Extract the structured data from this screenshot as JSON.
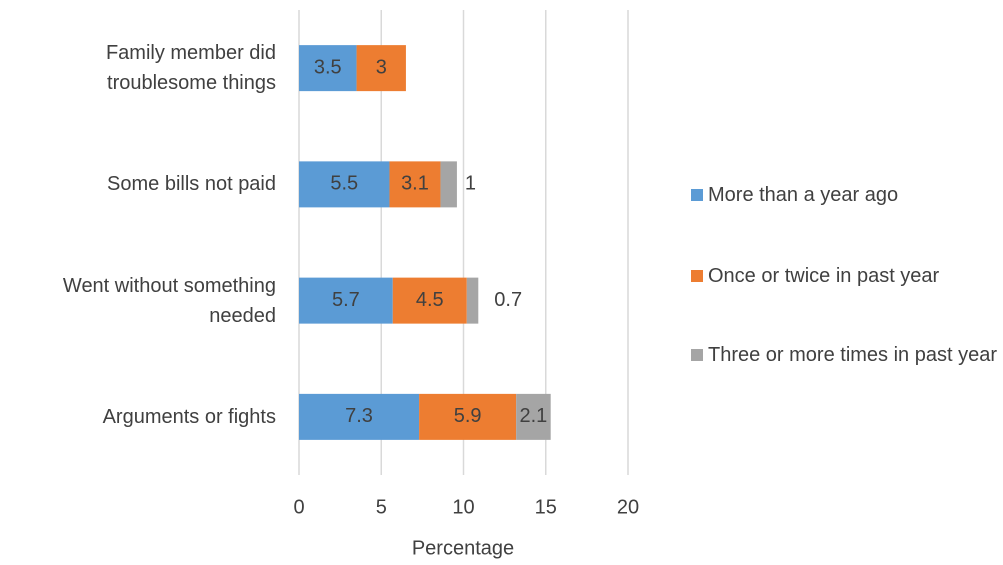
{
  "chart_data": {
    "type": "stacked-barh",
    "categories": [
      "Family member did troublesome things",
      "Some bills not paid",
      "Went without something needed",
      "Arguments or fights"
    ],
    "series": [
      {
        "name": "More than a year ago",
        "color": "#5b9bd5",
        "values": [
          3.5,
          5.5,
          5.7,
          7.3
        ]
      },
      {
        "name": "Once or twice in past year",
        "color": "#ed7d31",
        "values": [
          3,
          3.1,
          4.5,
          5.9
        ]
      },
      {
        "name": "Three or more times in past year",
        "color": "#a5a5a5",
        "values": [
          null,
          1,
          0.7,
          2.1
        ]
      }
    ],
    "xlabel": "Percentage",
    "xlim": [
      0,
      20
    ],
    "xticks": [
      0,
      5,
      10,
      15,
      20
    ],
    "grid": true,
    "legend": "right"
  }
}
